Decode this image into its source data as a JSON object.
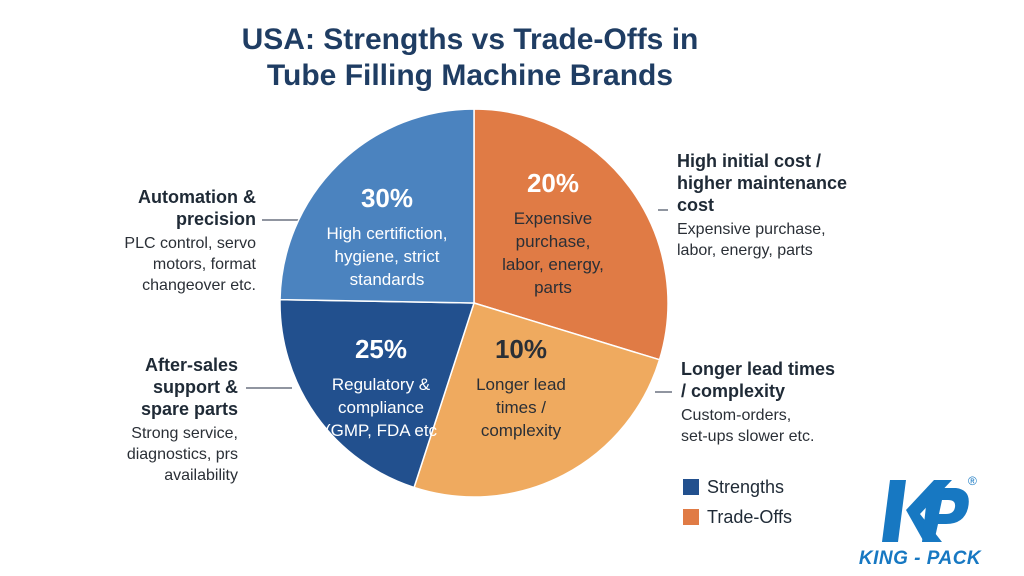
{
  "title_line1": "USA: Strengths vs Trade-Offs in",
  "title_line2": "Tube Filling Machine Brands",
  "colors": {
    "strength_light": "#4b83bf",
    "strength_dark": "#22508e",
    "tradeoff_dark": "#e07b45",
    "tradeoff_light": "#efaa5f",
    "legend_strength": "#22508e",
    "legend_tradeoff": "#e07b45"
  },
  "chart_data": {
    "type": "pie",
    "slices": [
      {
        "percent_label": "20%",
        "value": 20,
        "group": "Trade-Offs",
        "label_lines": [
          "Expensive",
          "purchase,",
          "labor, energy,",
          "parts"
        ]
      },
      {
        "percent_label": "10%",
        "value": 10,
        "group": "Trade-Offs",
        "label_lines": [
          "Longer lead",
          "times /",
          "complexity"
        ]
      },
      {
        "percent_label": "25%",
        "value": 25,
        "group": "Strengths",
        "label_lines": [
          "Regulatory &",
          "compliance",
          "(GMP, FDA etc"
        ]
      },
      {
        "percent_label": "30%",
        "value": 30,
        "group": "Strengths",
        "label_lines": [
          "High certifiction,",
          "hygiene, strict",
          "standards"
        ]
      }
    ],
    "legend": [
      "Strengths",
      "Trade-Offs"
    ],
    "legend_placement": "bottom-right"
  },
  "annotations": {
    "automation": {
      "head_lines": [
        "Automation &",
        "precision"
      ],
      "desc_lines": [
        "PLC control, servo",
        "motors, format",
        "changeover etc."
      ]
    },
    "after_sales": {
      "head_lines": [
        "After-sales",
        "support &",
        "spare parts"
      ],
      "desc_lines": [
        "Strong service,",
        "diagnostics, prs",
        "availability"
      ]
    },
    "high_cost": {
      "head_lines": [
        "High initial cost /",
        "higher maintenance",
        "cost"
      ],
      "desc_lines": [
        "Expensive purchase,",
        "labor, energy, parts"
      ]
    },
    "lead_times": {
      "head_lines": [
        "Longer lead times",
        "/ complexity"
      ],
      "desc_lines": [
        "Custom-orders,",
        "set-ups slower etc."
      ]
    }
  },
  "logo": {
    "text": "KING - PACK",
    "registered": "®"
  }
}
